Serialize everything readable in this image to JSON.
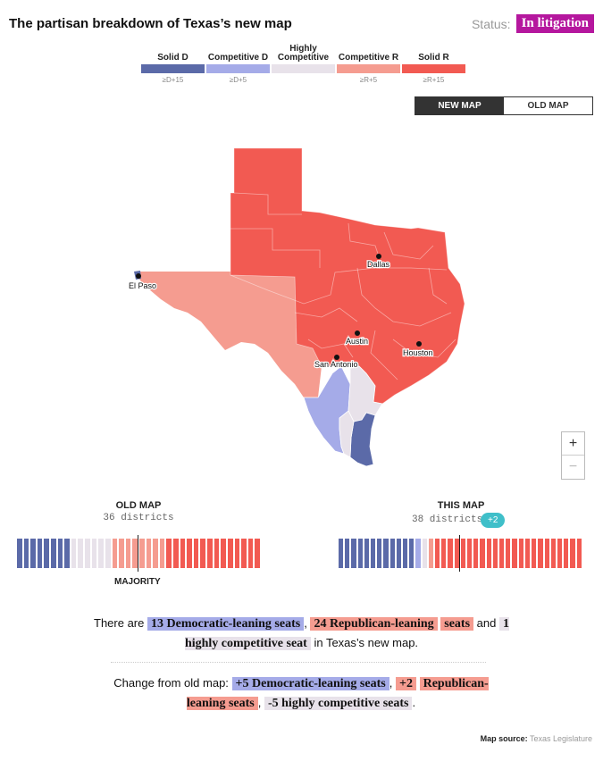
{
  "header": {
    "title": "The partisan breakdown of Texas’s new map",
    "status_label": "Status:",
    "status_value": "In litigation"
  },
  "legend": [
    {
      "label": "Solid D",
      "threshold": "≥D+15",
      "color": "#5b6aa8"
    },
    {
      "label": "Competitive D",
      "threshold": "≥D+5",
      "color": "#a5abe8"
    },
    {
      "label": "Highly Competitive",
      "threshold": "",
      "color": "#e8e2ea"
    },
    {
      "label": "Competitive R",
      "threshold": "≥R+5",
      "color": "#f59c90"
    },
    {
      "label": "Solid R",
      "threshold": "≥R+15",
      "color": "#f25a52"
    }
  ],
  "toggle": {
    "new_map": "NEW MAP",
    "old_map": "OLD MAP"
  },
  "map": {
    "cities": [
      "Dallas",
      "El Paso",
      "Austin",
      "Houston",
      "San Antonio"
    ]
  },
  "zoom": {
    "in_label": "+",
    "out_label": "−"
  },
  "old_map": {
    "title": "OLD MAP",
    "districts_label": "36 districts",
    "counts": {
      "solid_d": 8,
      "competitive_d": 0,
      "highly_competitive": 6,
      "competitive_r": 8,
      "solid_r": 14
    },
    "majority_label": "MAJORITY"
  },
  "this_map": {
    "title": "THIS MAP",
    "districts_label": "38 districts",
    "gain": "+2",
    "counts": {
      "solid_d": 12,
      "competitive_d": 1,
      "highly_competitive": 1,
      "competitive_r": 1,
      "solid_r": 23
    }
  },
  "summary": {
    "line_prefix": "There are",
    "dem_seats": "13 Democratic-leaning seats",
    "comma": ",",
    "rep_seats_1": "24 Republican-leaning",
    "rep_seats_2": "seats",
    "and": "and",
    "comp_seats": "1 highly competitive seat",
    "suffix": "in Texas’s new map.",
    "change_prefix": "Change from old map:",
    "change_dem": "+5 Democratic-leaning seats",
    "change_rep_1": "+2",
    "change_rep_2": "Republican-leaning seats",
    "change_comp": "-5 highly competitive seats",
    "period": "."
  },
  "source": {
    "label": "Map source:",
    "value": "Texas Legislature"
  }
}
